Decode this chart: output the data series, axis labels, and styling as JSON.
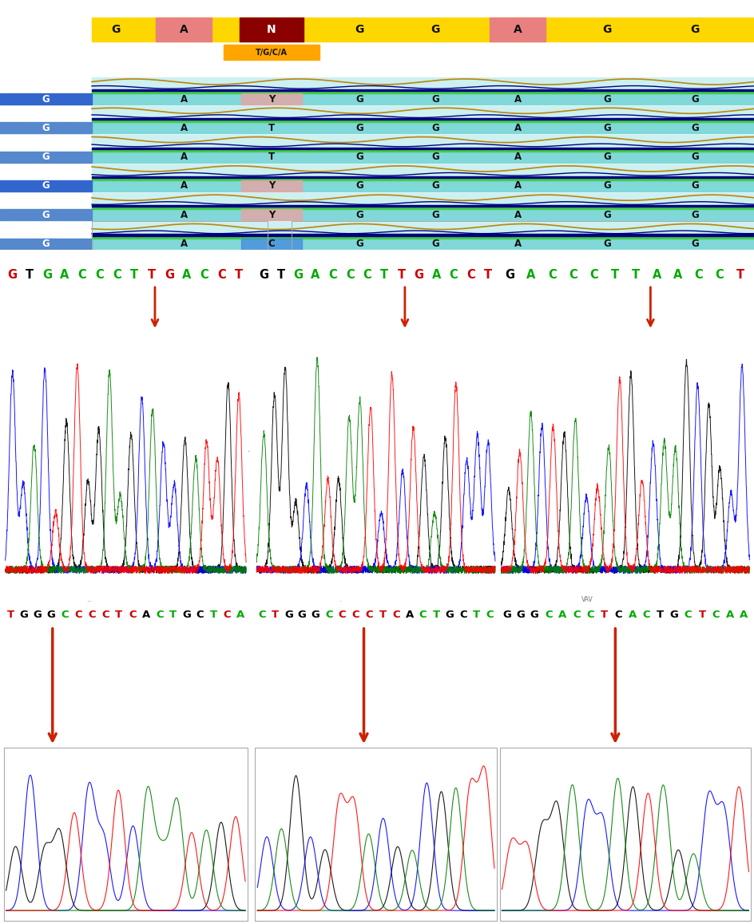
{
  "top_bases": [
    "G",
    "A",
    "N",
    "G",
    "G",
    "A",
    "G",
    "G"
  ],
  "top_bg": [
    null,
    "#e88080",
    "#8B0000",
    null,
    null,
    "#e88080",
    null,
    null
  ],
  "orange_label": "T/G/C/A",
  "rows": [
    {
      "bases": [
        "G",
        "A",
        "Y",
        "G",
        "G",
        "A",
        "G",
        "G"
      ],
      "hl_idx": 2,
      "hl_color": "#f0a0a0",
      "left_dark": true
    },
    {
      "bases": [
        "G",
        "A",
        "T",
        "G",
        "G",
        "A",
        "G",
        "G"
      ],
      "hl_idx": -1,
      "hl_color": null,
      "left_dark": false
    },
    {
      "bases": [
        "G",
        "A",
        "T",
        "G",
        "G",
        "A",
        "G",
        "G"
      ],
      "hl_idx": -1,
      "hl_color": null,
      "left_dark": false
    },
    {
      "bases": [
        "G",
        "A",
        "Y",
        "G",
        "G",
        "A",
        "G",
        "G"
      ],
      "hl_idx": 2,
      "hl_color": "#f0a0a0",
      "left_dark": true
    },
    {
      "bases": [
        "G",
        "A",
        "Y",
        "G",
        "G",
        "A",
        "G",
        "G"
      ],
      "hl_idx": 2,
      "hl_color": "#f0a0a0",
      "left_dark": false
    },
    {
      "bases": [
        "G",
        "A",
        "C",
        "G",
        "G",
        "A",
        "G",
        "G"
      ],
      "hl_idx": 2,
      "hl_color": "#4488dd",
      "left_dark": false
    }
  ],
  "fok1_panels": [
    {
      "seq": "GTGACCCTTGACCT",
      "char_colors": [
        "#cc0000",
        "#000000",
        "#00aa00",
        "#00aa00",
        "#00aa00",
        "#00aa00",
        "#00aa00",
        "#00aa00",
        "#cc0000",
        "#cc0000",
        "#00aa00",
        "#00aa00",
        "#cc0000",
        "#cc0000"
      ],
      "arrow_rel": 0.62
    },
    {
      "seq": "GTGACCCTTGACCT",
      "char_colors": [
        "#000000",
        "#000000",
        "#00aa00",
        "#00aa00",
        "#00aa00",
        "#00aa00",
        "#00aa00",
        "#00aa00",
        "#cc0000",
        "#cc0000",
        "#00aa00",
        "#00aa00",
        "#cc0000",
        "#cc0000"
      ],
      "arrow_rel": 0.62
    },
    {
      "seq": "GACCCTTAACCT",
      "char_colors": [
        "#000000",
        "#00aa00",
        "#00aa00",
        "#00aa00",
        "#00aa00",
        "#00aa00",
        "#00aa00",
        "#00aa00",
        "#00aa00",
        "#00aa00",
        "#00aa00",
        "#cc0000"
      ],
      "arrow_rel": 0.6
    }
  ],
  "bottom_panels": [
    {
      "seq": "TGGGCCCCTCACTGCTCA",
      "char_colors": [
        "#cc0000",
        "#000000",
        "#000000",
        "#000000",
        "#00aa00",
        "#cc0000",
        "#cc0000",
        "#cc0000",
        "#cc0000",
        "#cc0000",
        "#000000",
        "#00aa00",
        "#00aa00",
        "#000000",
        "#000000",
        "#00aa00",
        "#cc0000",
        "#00aa00"
      ],
      "arrow_rel": 0.2,
      "small_label": "..."
    },
    {
      "seq": "CTGGGCCCCTCACTGCTC",
      "char_colors": [
        "#00aa00",
        "#cc0000",
        "#000000",
        "#000000",
        "#000000",
        "#00aa00",
        "#cc0000",
        "#cc0000",
        "#cc0000",
        "#cc0000",
        "#cc0000",
        "#000000",
        "#00aa00",
        "#00aa00",
        "#000000",
        "#000000",
        "#00aa00",
        "#00aa00"
      ],
      "arrow_rel": 0.45,
      "small_label": "."
    },
    {
      "seq": "GGGCACCTCACTGCTCAA",
      "char_colors": [
        "#000000",
        "#000000",
        "#000000",
        "#00aa00",
        "#00aa00",
        "#00aa00",
        "#00aa00",
        "#cc0000",
        "#000000",
        "#00aa00",
        "#00aa00",
        "#000000",
        "#000000",
        "#00aa00",
        "#cc0000",
        "#00aa00",
        "#00aa00",
        "#00aa00"
      ],
      "arrow_rel": 0.46,
      "small_label": "VAV"
    }
  ],
  "panel_starts": [
    0.005,
    0.338,
    0.662
  ],
  "panel_ends": [
    0.328,
    0.658,
    0.995
  ]
}
